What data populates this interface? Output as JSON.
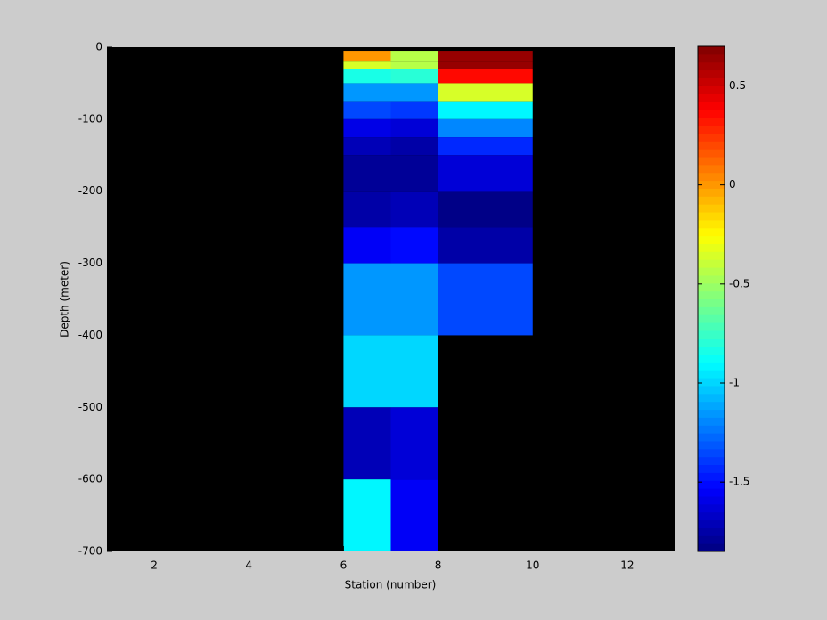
{
  "chart_data": {
    "type": "heatmap",
    "xlabel": "Station (number)",
    "ylabel": "Depth (meter)",
    "x_edges": [
      6,
      7,
      8,
      10
    ],
    "y_edges": [
      -5,
      -20,
      -30,
      -50,
      -75,
      -100,
      -125,
      -150,
      -200,
      -250,
      -300,
      -400,
      -500,
      -600,
      -700
    ],
    "z": [
      [
        0.0,
        -0.45,
        0.65
      ],
      [
        -0.35,
        -0.45,
        0.65
      ],
      [
        -0.85,
        -0.8,
        0.35
      ],
      [
        -1.15,
        -1.15,
        -0.35
      ],
      [
        -1.35,
        -1.4,
        -0.9
      ],
      [
        -1.6,
        -1.65,
        -1.2
      ],
      [
        -1.7,
        -1.75,
        -1.45
      ],
      [
        -1.8,
        -1.8,
        -1.65
      ],
      [
        -1.75,
        -1.7,
        -1.85
      ],
      [
        -1.55,
        -1.5,
        -1.75
      ],
      [
        -1.15,
        -1.15,
        -1.35
      ],
      [
        -1.0,
        -1.0,
        null
      ],
      [
        -1.7,
        -1.65,
        null
      ],
      [
        -0.9,
        -1.55,
        null
      ]
    ],
    "xlim": [
      1,
      13
    ],
    "xticks": [
      2,
      4,
      6,
      8,
      10,
      12
    ],
    "ylim": [
      -700,
      0
    ],
    "yticks": [
      0,
      -100,
      -200,
      -300,
      -400,
      -500,
      -600,
      -700
    ],
    "clim": [
      -1.85,
      0.7
    ],
    "cticks": [
      0.5,
      0,
      -0.5,
      -1,
      -1.5
    ],
    "colormap": "jet",
    "background": "#000000"
  }
}
